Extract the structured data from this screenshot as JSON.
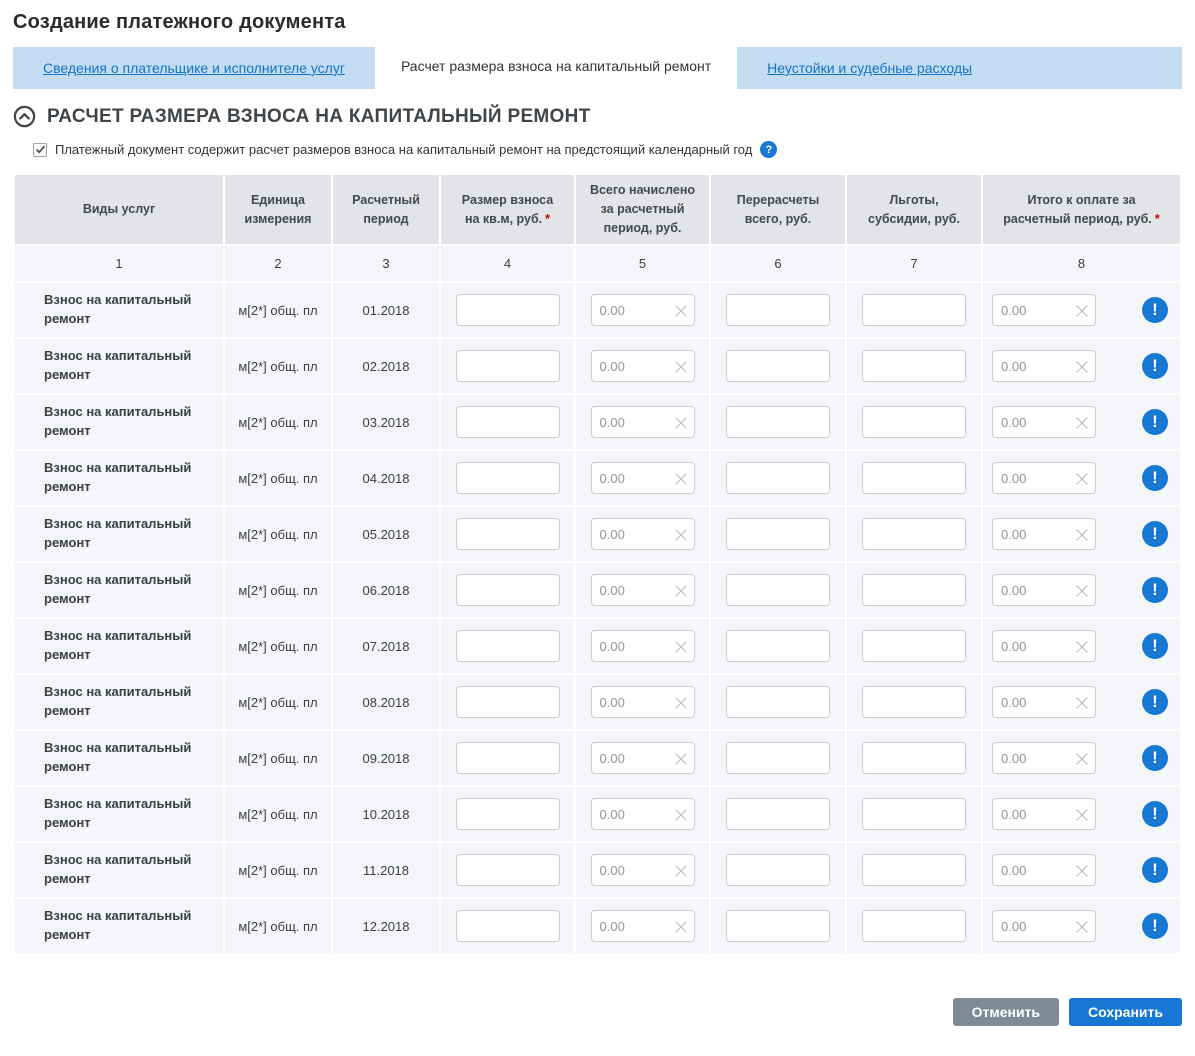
{
  "page": {
    "title": "Создание платежного документа"
  },
  "tabs": {
    "items": [
      {
        "label": "Сведения о плательщике и исполнителе услуг",
        "active": false
      },
      {
        "label": "Расчет размера взноса на капитальный ремонт",
        "active": true
      },
      {
        "label": "Неустойки и судебные расходы",
        "active": false
      }
    ]
  },
  "section": {
    "title": "РАСЧЕТ РАЗМЕРА ВЗНОСА НА КАПИТАЛЬНЫЙ РЕМОНТ",
    "collapse_icon": "chevron-up-circle"
  },
  "checkbox": {
    "checked": true,
    "label": "Платежный документ содержит расчет размеров взноса на капитальный ремонт на предстоящий календарный год",
    "help_icon": "question-circle"
  },
  "symbols": {
    "required": "*",
    "help": "?",
    "warning": "!",
    "checkmark": "✔"
  },
  "table": {
    "columns": [
      {
        "num": "1",
        "label": "Виды услуг",
        "required": false
      },
      {
        "num": "2",
        "label": "Единица измерения",
        "required": false
      },
      {
        "num": "3",
        "label": "Расчетный период",
        "required": false
      },
      {
        "num": "4",
        "label": "Размер взноса на кв.м, руб.",
        "required": true
      },
      {
        "num": "5",
        "label": "Всего начислено за расчетный период, руб.",
        "required": false
      },
      {
        "num": "6",
        "label": "Перерасчеты всего, руб.",
        "required": false
      },
      {
        "num": "7",
        "label": "Льготы, субсидии, руб.",
        "required": false
      },
      {
        "num": "8",
        "label": "Итого к оплате за расчетный период, руб.",
        "required": true
      }
    ],
    "rows": [
      {
        "service": "Взнос на капитальный ремонт",
        "unit": "м[2*] общ. пл",
        "period": "01.2018",
        "rate_value": "",
        "accrued_value": "0.00",
        "recalc_value": "",
        "benefits_value": "",
        "total_value": "0.00"
      },
      {
        "service": "Взнос на капитальный ремонт",
        "unit": "м[2*] общ. пл",
        "period": "02.2018",
        "rate_value": "",
        "accrued_value": "0.00",
        "recalc_value": "",
        "benefits_value": "",
        "total_value": "0.00"
      },
      {
        "service": "Взнос на капитальный ремонт",
        "unit": "м[2*] общ. пл",
        "period": "03.2018",
        "rate_value": "",
        "accrued_value": "0.00",
        "recalc_value": "",
        "benefits_value": "",
        "total_value": "0.00"
      },
      {
        "service": "Взнос на капитальный ремонт",
        "unit": "м[2*] общ. пл",
        "period": "04.2018",
        "rate_value": "",
        "accrued_value": "0.00",
        "recalc_value": "",
        "benefits_value": "",
        "total_value": "0.00"
      },
      {
        "service": "Взнос на капитальный ремонт",
        "unit": "м[2*] общ. пл",
        "period": "05.2018",
        "rate_value": "",
        "accrued_value": "0.00",
        "recalc_value": "",
        "benefits_value": "",
        "total_value": "0.00"
      },
      {
        "service": "Взнос на капитальный ремонт",
        "unit": "м[2*] общ. пл",
        "period": "06.2018",
        "rate_value": "",
        "accrued_value": "0.00",
        "recalc_value": "",
        "benefits_value": "",
        "total_value": "0.00"
      },
      {
        "service": "Взнос на капитальный ремонт",
        "unit": "м[2*] общ. пл",
        "period": "07.2018",
        "rate_value": "",
        "accrued_value": "0.00",
        "recalc_value": "",
        "benefits_value": "",
        "total_value": "0.00"
      },
      {
        "service": "Взнос на капитальный ремонт",
        "unit": "м[2*] общ. пл",
        "period": "08.2018",
        "rate_value": "",
        "accrued_value": "0.00",
        "recalc_value": "",
        "benefits_value": "",
        "total_value": "0.00"
      },
      {
        "service": "Взнос на капитальный ремонт",
        "unit": "м[2*] общ. пл",
        "period": "09.2018",
        "rate_value": "",
        "accrued_value": "0.00",
        "recalc_value": "",
        "benefits_value": "",
        "total_value": "0.00"
      },
      {
        "service": "Взнос на капитальный ремонт",
        "unit": "м[2*] общ. пл",
        "period": "10.2018",
        "rate_value": "",
        "accrued_value": "0.00",
        "recalc_value": "",
        "benefits_value": "",
        "total_value": "0.00"
      },
      {
        "service": "Взнос на капитальный ремонт",
        "unit": "м[2*] общ. пл",
        "period": "11.2018",
        "rate_value": "",
        "accrued_value": "0.00",
        "recalc_value": "",
        "benefits_value": "",
        "total_value": "0.00"
      },
      {
        "service": "Взнос на капитальный ремонт",
        "unit": "м[2*] общ. пл",
        "period": "12.2018",
        "rate_value": "",
        "accrued_value": "0.00",
        "recalc_value": "",
        "benefits_value": "",
        "total_value": "0.00"
      }
    ]
  },
  "footer": {
    "cancel_label": "Отменить",
    "save_label": "Сохранить"
  },
  "colors": {
    "accent_blue": "#1678d2",
    "tabbar_blue": "#c3dcf2",
    "link_blue": "#1474c4",
    "header_gray": "#e2e4e8",
    "row_gray": "#f3f5f9",
    "cancel_gray": "#7e8b97",
    "required_red": "#cc0000"
  }
}
